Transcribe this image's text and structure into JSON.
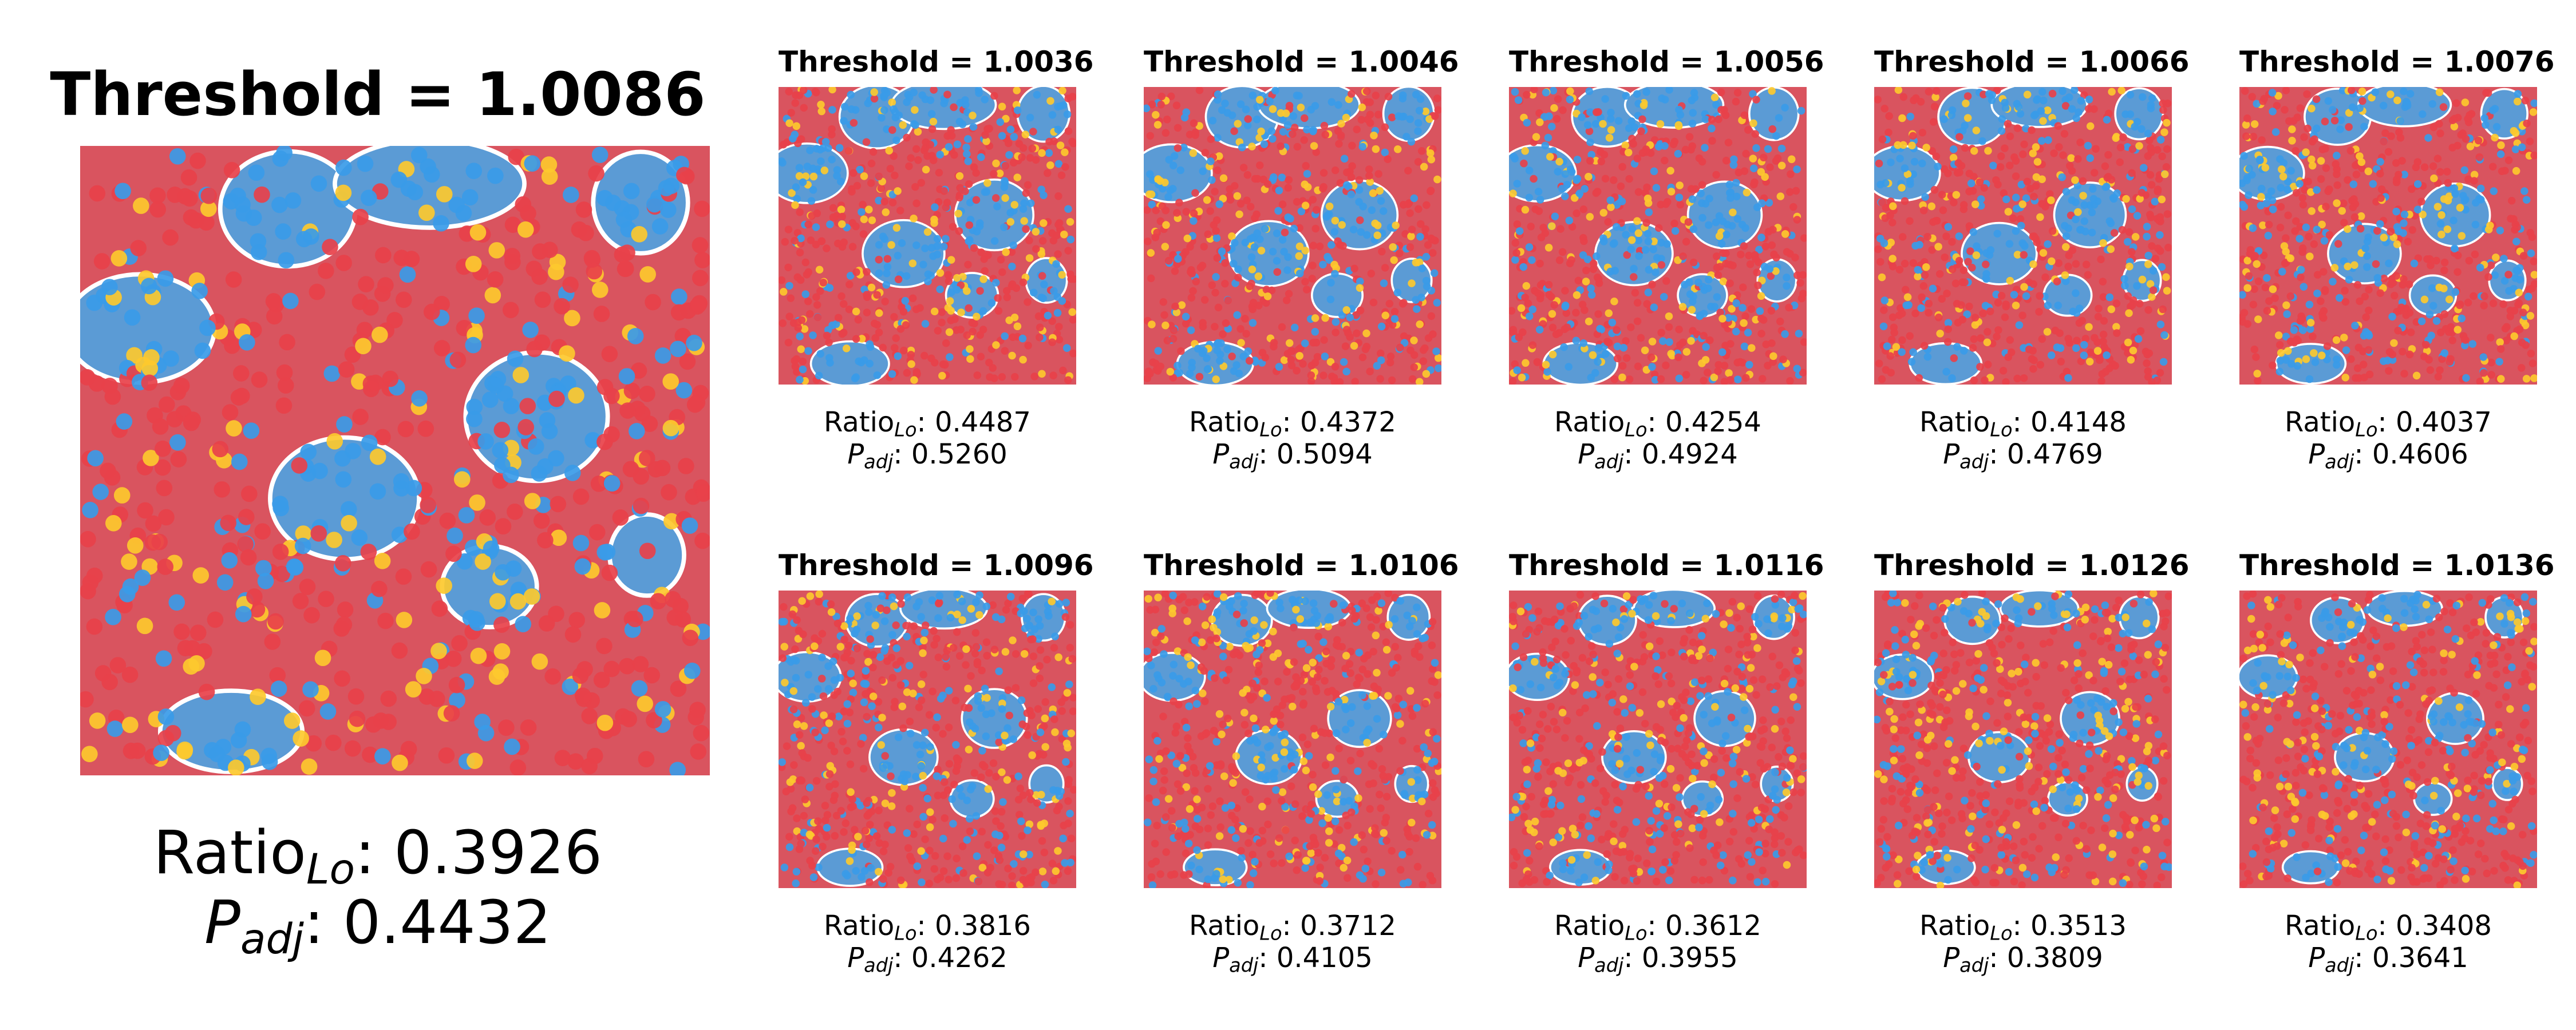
{
  "chart_data": {
    "type": "other",
    "description_note": "",
    "ratio_symbol": "Ratio",
    "ratio_subscript": "Lo",
    "p_symbol": "P",
    "p_subscript": "adj",
    "colors": {
      "region_high": "#d9545f",
      "region_low": "#5b9bd5",
      "point_red": "#e8414a",
      "point_blue": "#3a9be8",
      "point_yellow": "#fdc92e",
      "boundary": "#ffffff"
    },
    "main_panel": {
      "title": "Threshold = 1.0086",
      "threshold": 1.0086,
      "ratio_lo": "0.3926",
      "p_adj": "0.4432"
    },
    "panels": [
      {
        "title": "Threshold = 1.0036",
        "threshold": 1.0036,
        "ratio_lo": "0.4487",
        "p_adj": "0.5260"
      },
      {
        "title": "Threshold = 1.0046",
        "threshold": 1.0046,
        "ratio_lo": "0.4372",
        "p_adj": "0.5094"
      },
      {
        "title": "Threshold = 1.0056",
        "threshold": 1.0056,
        "ratio_lo": "0.4254",
        "p_adj": "0.4924"
      },
      {
        "title": "Threshold = 1.0066",
        "threshold": 1.0066,
        "ratio_lo": "0.4148",
        "p_adj": "0.4769"
      },
      {
        "title": "Threshold = 1.0076",
        "threshold": 1.0076,
        "ratio_lo": "0.4037",
        "p_adj": "0.4606"
      },
      {
        "title": "Threshold = 1.0096",
        "threshold": 1.0096,
        "ratio_lo": "0.3816",
        "p_adj": "0.4262"
      },
      {
        "title": "Threshold = 1.0106",
        "threshold": 1.0106,
        "ratio_lo": "0.3712",
        "p_adj": "0.4105"
      },
      {
        "title": "Threshold = 1.0116",
        "threshold": 1.0116,
        "ratio_lo": "0.3612",
        "p_adj": "0.3955"
      },
      {
        "title": "Threshold = 1.0126",
        "threshold": 1.0126,
        "ratio_lo": "0.3513",
        "p_adj": "0.3809"
      },
      {
        "title": "Threshold = 1.0136",
        "threshold": 1.0136,
        "ratio_lo": "0.3408",
        "p_adj": "0.3641"
      }
    ]
  }
}
